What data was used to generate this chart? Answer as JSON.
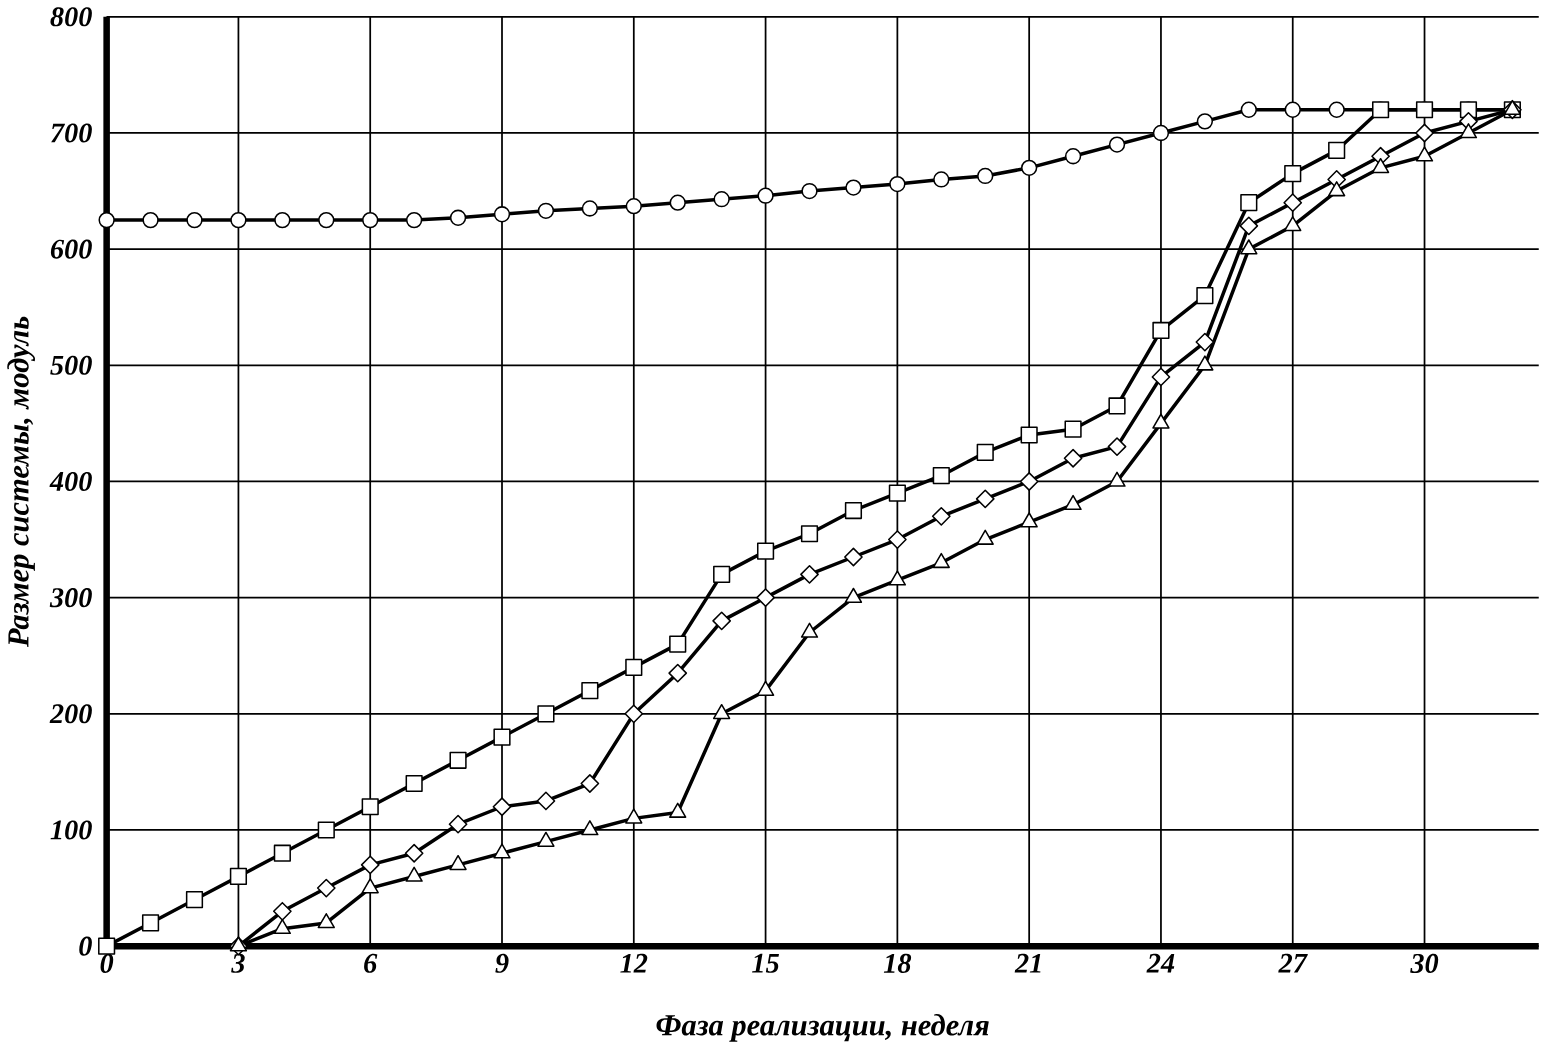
{
  "chart_data": {
    "type": "line",
    "xlabel": "Фаза реализации, неделя",
    "ylabel": "Размер системы, модуль",
    "xlim": [
      0,
      32.6
    ],
    "ylim": [
      0,
      800
    ],
    "xticks": [
      0,
      3,
      6,
      9,
      12,
      15,
      18,
      21,
      24,
      27,
      30
    ],
    "yticks": [
      0,
      100,
      200,
      300,
      400,
      500,
      600,
      700,
      800
    ],
    "grid": true,
    "series": [
      {
        "color": "#000000",
        "marker": "circle",
        "x": [
          0,
          1,
          2,
          3,
          4,
          5,
          6,
          7,
          8,
          9,
          10,
          11,
          12,
          13,
          14,
          15,
          16,
          17,
          18,
          19,
          20,
          21,
          22,
          23,
          24,
          25,
          26,
          27,
          28,
          29,
          30,
          31,
          32
        ],
        "values": [
          625,
          625,
          625,
          625,
          625,
          625,
          625,
          625,
          627,
          630,
          633,
          635,
          637,
          640,
          643,
          646,
          650,
          653,
          656,
          660,
          663,
          670,
          680,
          690,
          700,
          710,
          720,
          720,
          720,
          720,
          720,
          720,
          720
        ]
      },
      {
        "color": "#000000",
        "marker": "square",
        "x": [
          0,
          1,
          2,
          3,
          4,
          5,
          6,
          7,
          8,
          9,
          10,
          11,
          12,
          13,
          14,
          15,
          16,
          17,
          18,
          19,
          20,
          21,
          22,
          23,
          24,
          25,
          26,
          27,
          28,
          29,
          30,
          31,
          32
        ],
        "values": [
          0,
          20,
          40,
          60,
          80,
          100,
          120,
          140,
          160,
          180,
          200,
          220,
          240,
          260,
          320,
          340,
          355,
          375,
          390,
          405,
          425,
          440,
          445,
          465,
          530,
          560,
          640,
          665,
          685,
          720,
          720,
          720,
          720
        ]
      },
      {
        "color": "#000000",
        "marker": "diamond",
        "x": [
          3,
          4,
          5,
          6,
          7,
          8,
          9,
          10,
          11,
          12,
          13,
          14,
          15,
          16,
          17,
          18,
          19,
          20,
          21,
          22,
          23,
          24,
          25,
          26,
          27,
          28,
          29,
          30,
          31,
          32
        ],
        "values": [
          0,
          30,
          50,
          70,
          80,
          105,
          120,
          125,
          140,
          200,
          235,
          280,
          300,
          320,
          335,
          350,
          370,
          385,
          400,
          420,
          430,
          490,
          520,
          620,
          640,
          660,
          680,
          700,
          710,
          720
        ]
      },
      {
        "color": "#000000",
        "marker": "triangle",
        "x": [
          3,
          4,
          5,
          6,
          7,
          8,
          9,
          10,
          11,
          12,
          13,
          14,
          15,
          16,
          17,
          18,
          19,
          20,
          21,
          22,
          23,
          24,
          25,
          26,
          27,
          28,
          29,
          30,
          31,
          32
        ],
        "values": [
          0,
          15,
          20,
          50,
          60,
          70,
          80,
          90,
          100,
          110,
          115,
          200,
          220,
          270,
          300,
          315,
          330,
          350,
          365,
          380,
          400,
          450,
          500,
          600,
          620,
          650,
          670,
          680,
          700,
          720
        ]
      }
    ]
  }
}
